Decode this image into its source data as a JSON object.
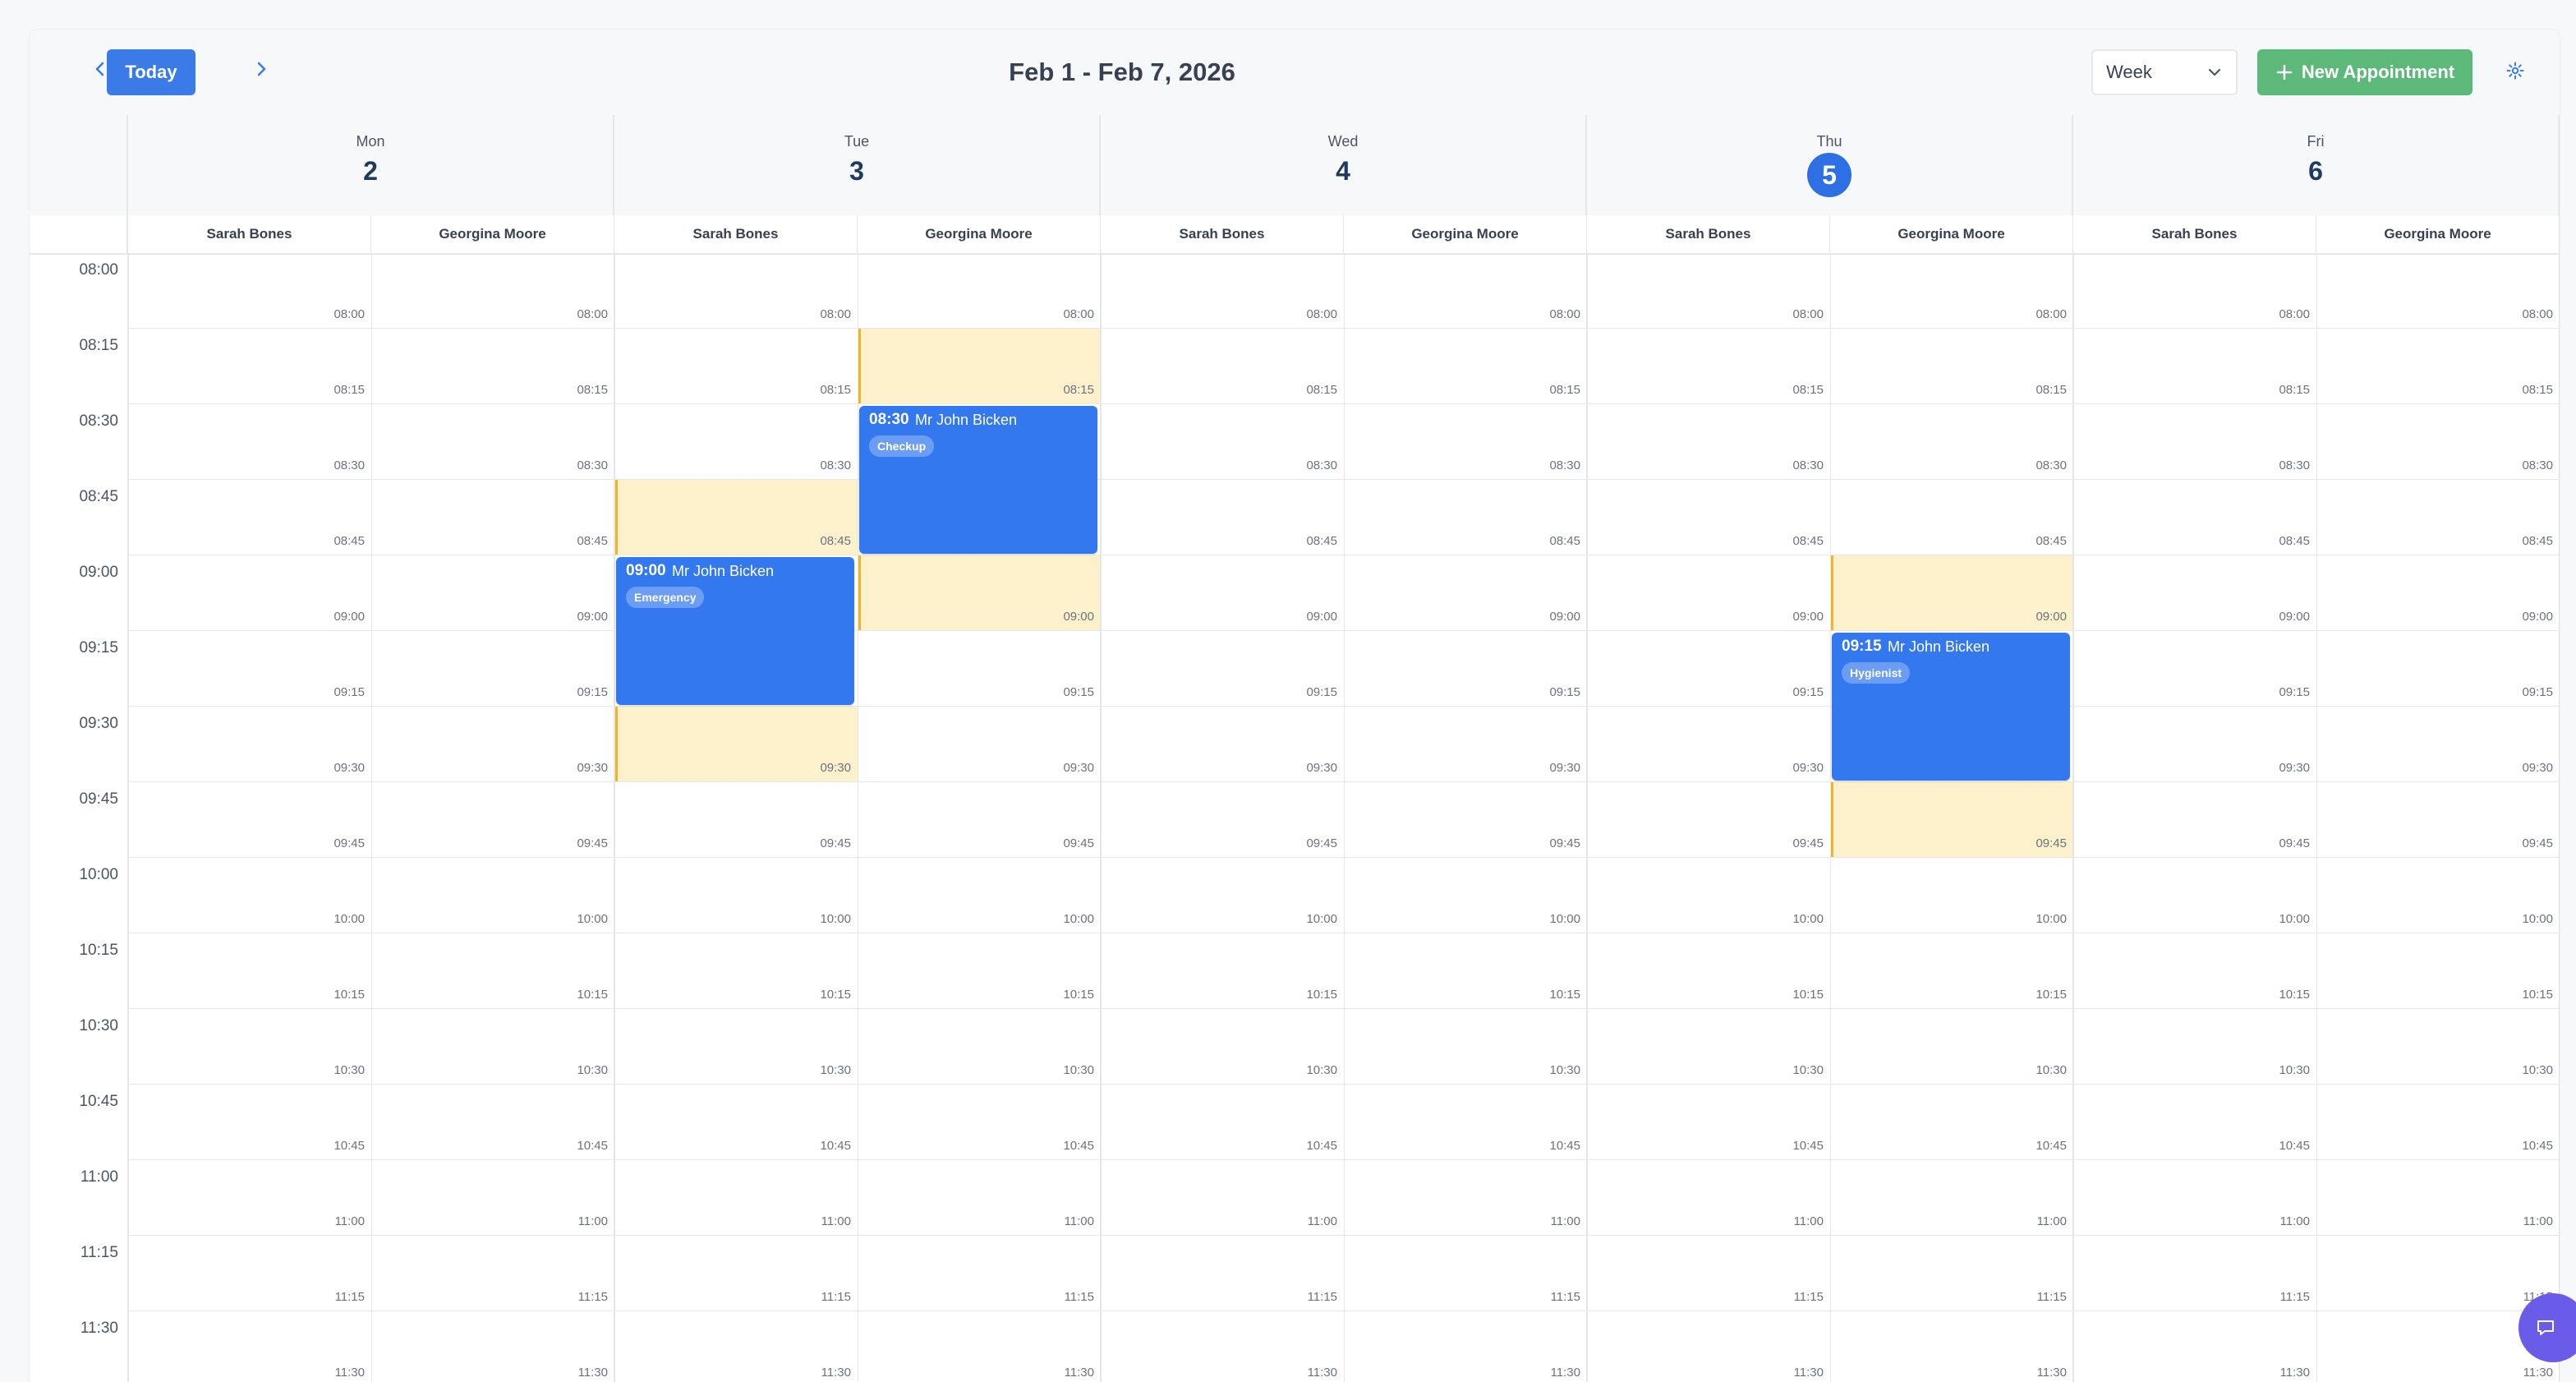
{
  "toolbar": {
    "today_label": "Today",
    "range_title": "Feb 1 - Feb 7, 2026",
    "view_value": "Week",
    "new_label": "New Appointment",
    "prev_icon": "chevron-left-icon",
    "next_icon": "chevron-right-icon",
    "settings_icon": "gear-icon",
    "accent_color": "#3b7be8",
    "new_color": "#5cb97a"
  },
  "days": [
    {
      "name": "Mon",
      "num": "2",
      "today": false
    },
    {
      "name": "Tue",
      "num": "3",
      "today": false
    },
    {
      "name": "Wed",
      "num": "4",
      "today": false
    },
    {
      "name": "Thu",
      "num": "5",
      "today": true
    },
    {
      "name": "Fri",
      "num": "6",
      "today": false
    }
  ],
  "staff": [
    "Sarah Bones",
    "Georgina Moore"
  ],
  "times": [
    "08:00",
    "08:15",
    "08:30",
    "08:45",
    "09:00",
    "09:15",
    "09:30",
    "09:45",
    "10:00",
    "10:15",
    "10:30",
    "10:45",
    "11:00",
    "11:15",
    "11:30"
  ],
  "availability": [
    {
      "day": 1,
      "staff": 1,
      "start": "08:15",
      "end": "08:30"
    },
    {
      "day": 1,
      "staff": 1,
      "start": "09:00",
      "end": "09:15"
    },
    {
      "day": 1,
      "staff": 0,
      "start": "08:45",
      "end": "09:00"
    },
    {
      "day": 1,
      "staff": 0,
      "start": "09:30",
      "end": "09:45"
    },
    {
      "day": 3,
      "staff": 1,
      "start": "09:00",
      "end": "09:15"
    },
    {
      "day": 3,
      "staff": 1,
      "start": "09:45",
      "end": "10:00"
    }
  ],
  "appointments": [
    {
      "day": 1,
      "staff": 1,
      "start": "08:30",
      "end": "08:45",
      "time": "08:30",
      "patient": "Mr John Bicken",
      "type": "Checkup"
    },
    {
      "day": 1,
      "staff": 0,
      "start": "09:00",
      "end": "09:15",
      "time": "09:00",
      "patient": "Mr John Bicken",
      "type": "Emergency"
    },
    {
      "day": 3,
      "staff": 1,
      "start": "09:15",
      "end": "09:30",
      "time": "09:15",
      "patient": "Mr John Bicken",
      "type": "Hygienist"
    }
  ],
  "chat_icon": "chat-bubble-icon"
}
